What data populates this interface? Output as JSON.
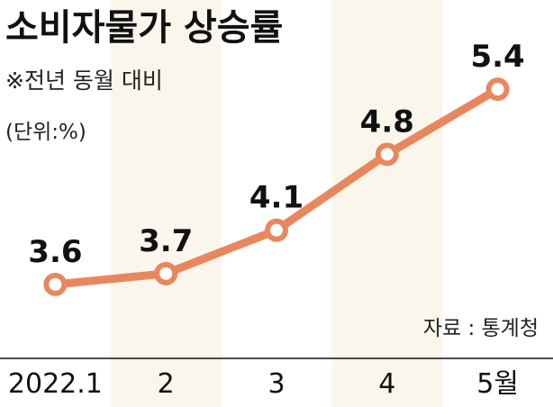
{
  "header": {
    "title": "소비자물가 상승률",
    "note": "※전년 동월 대비",
    "unit": "(단위:%)"
  },
  "footer": {
    "source": "자료 : 통계청"
  },
  "colors": {
    "line": "#E8875E",
    "band": "#FAF6EC",
    "point_fill": "#FFFFFF",
    "axis": "#111111"
  },
  "chart_data": {
    "type": "line",
    "categories": [
      "2022.1",
      "2",
      "3",
      "4",
      "5월"
    ],
    "values": [
      3.6,
      3.7,
      4.1,
      4.8,
      5.4
    ],
    "data_labels": [
      "3.6",
      "3.7",
      "4.1",
      "4.8",
      "5.4"
    ],
    "title": "소비자물가 상승률",
    "subtitle": "※전년 동월 대비",
    "unit": "(단위:%)",
    "source": "자료 : 통계청",
    "xlabel": "",
    "ylabel": "",
    "ylim": [
      3.3,
      5.6
    ],
    "grid": false,
    "legend": "none",
    "alternating_column_bands": true
  }
}
